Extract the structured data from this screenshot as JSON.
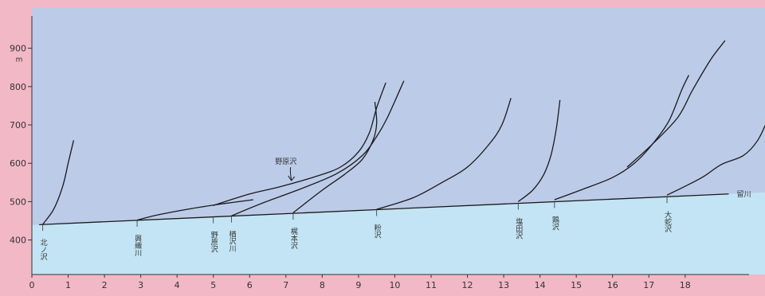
{
  "chart_data": {
    "type": "line",
    "title": "",
    "xlabel": "",
    "ylabel": "",
    "y_unit": "m",
    "xlim": [
      0,
      20.2
    ],
    "ylim": [
      310,
      1005
    ],
    "x_ticks": [
      0,
      1,
      2,
      3,
      4,
      5,
      6,
      7,
      8,
      9,
      10,
      11,
      12,
      13,
      14,
      15,
      16,
      17,
      18
    ],
    "y_ticks": [
      400,
      500,
      600,
      700,
      800,
      900
    ],
    "colors": {
      "plot_bg": "#bccbe8",
      "water_band": "#c3e4f4",
      "frame": "#f2b8c6",
      "line": "#1a1a1a"
    },
    "main_river": {
      "name": "留川",
      "points": [
        [
          0.2,
          440
        ],
        [
          19.2,
          520
        ]
      ]
    },
    "tributaries": [
      {
        "name": "北ノ沢",
        "points": [
          [
            0.3,
            441
          ],
          [
            0.6,
            480
          ],
          [
            0.85,
            540
          ],
          [
            1.0,
            600
          ],
          [
            1.15,
            660
          ]
        ]
      },
      {
        "name": "興織川",
        "points": [
          [
            2.9,
            452
          ],
          [
            3.5,
            466
          ],
          [
            4.4,
            482
          ],
          [
            5.3,
            495
          ],
          [
            6.1,
            505
          ]
        ]
      },
      {
        "name": "野原沢",
        "points": [
          [
            5.0,
            490
          ],
          [
            6.0,
            520
          ],
          [
            6.8,
            538
          ],
          [
            7.8,
            565
          ],
          [
            8.5,
            590
          ],
          [
            9.0,
            630
          ],
          [
            9.3,
            680
          ],
          [
            9.5,
            745
          ],
          [
            9.75,
            810
          ]
        ]
      },
      {
        "name": "楢沢川",
        "points": [
          [
            5.5,
            463
          ],
          [
            6.4,
            498
          ],
          [
            7.4,
            533
          ],
          [
            8.4,
            573
          ],
          [
            9.1,
            620
          ],
          [
            9.5,
            670
          ],
          [
            9.8,
            720
          ],
          [
            10.25,
            815
          ]
        ]
      },
      {
        "name": "梶本沢",
        "points": [
          [
            7.2,
            471
          ],
          [
            8.0,
            530
          ],
          [
            8.6,
            570
          ],
          [
            9.1,
            610
          ],
          [
            9.4,
            660
          ],
          [
            9.5,
            705
          ],
          [
            9.45,
            760
          ]
        ]
      },
      {
        "name": "粉沢",
        "points": [
          [
            9.5,
            480
          ],
          [
            10.5,
            510
          ],
          [
            11.3,
            550
          ],
          [
            12.0,
            590
          ],
          [
            12.6,
            650
          ],
          [
            12.95,
            700
          ],
          [
            13.2,
            770
          ]
        ]
      },
      {
        "name": "塩田沢",
        "points": [
          [
            13.4,
            500
          ],
          [
            13.8,
            530
          ],
          [
            14.1,
            570
          ],
          [
            14.3,
            620
          ],
          [
            14.45,
            690
          ],
          [
            14.55,
            765
          ]
        ]
      },
      {
        "name": "鶏沢",
        "points": [
          [
            14.4,
            505
          ],
          [
            15.2,
            533
          ],
          [
            16.0,
            563
          ],
          [
            16.6,
            600
          ],
          [
            17.1,
            650
          ],
          [
            17.55,
            710
          ],
          [
            17.9,
            790
          ],
          [
            18.1,
            830
          ]
        ]
      },
      {
        "name": "",
        "points": [
          [
            16.4,
            590
          ],
          [
            17.1,
            650
          ],
          [
            17.8,
            720
          ],
          [
            18.2,
            790
          ],
          [
            18.7,
            870
          ],
          [
            19.1,
            920
          ]
        ]
      },
      {
        "name": "大蛇沢",
        "points": [
          [
            17.5,
            517
          ],
          [
            18.0,
            540
          ],
          [
            18.5,
            565
          ],
          [
            19.0,
            597
          ],
          [
            19.6,
            620
          ],
          [
            20.0,
            660
          ],
          [
            20.3,
            720
          ],
          [
            20.55,
            780
          ]
        ]
      }
    ],
    "annotations": [
      {
        "text": "野原沢",
        "x": 7.0,
        "y": 598,
        "arrow_to": [
          7.15,
          555
        ]
      }
    ]
  }
}
